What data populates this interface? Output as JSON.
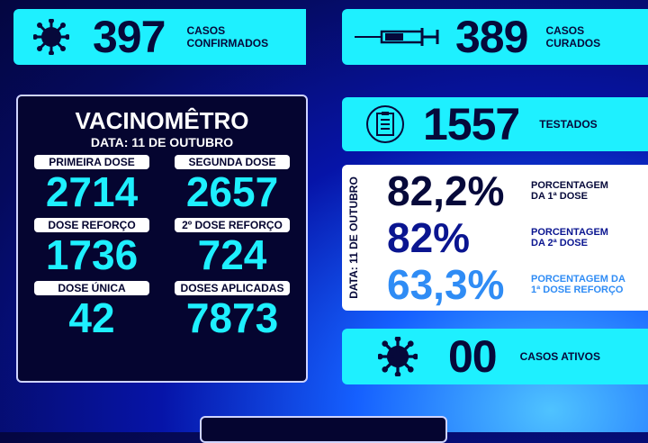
{
  "confirmados": {
    "value": "397",
    "label1": "CASOS",
    "label2": "CONFIRMADOS",
    "icon": "virus-icon"
  },
  "curados": {
    "value": "389",
    "label1": "CASOS",
    "label2": "CURADOS",
    "icon": "syringe-icon"
  },
  "testados": {
    "value": "1557",
    "label": "TESTADOS",
    "icon": "clipboard-icon"
  },
  "ativos": {
    "value": "00",
    "label": "CASOS ATIVOS",
    "icon": "virus-icon"
  },
  "vacinometro": {
    "title": "VACINOMÊTRO",
    "date": "DATA: 11 DE OUTUBRO",
    "items": [
      {
        "label": "PRIMEIRA DOSE",
        "value": "2714"
      },
      {
        "label": "SEGUNDA DOSE",
        "value": "2657"
      },
      {
        "label": "DOSE REFORÇO",
        "value": "1736"
      },
      {
        "label": "2º DOSE REFORÇO",
        "value": "724"
      },
      {
        "label": "DOSE ÚNICA",
        "value": "42"
      },
      {
        "label": "DOSES APLICADAS",
        "value": "7873"
      }
    ]
  },
  "percentuais": {
    "date": "DATA: 11 DE OUTUBRO",
    "items": [
      {
        "value": "82,2%",
        "label1": "PORCENTAGEM",
        "label2": "DA 1ª DOSE",
        "color": "#06093a"
      },
      {
        "value": "82%",
        "label1": "PORCENTAGEM",
        "label2": "DA 2ª DOSE",
        "color": "#0a1590"
      },
      {
        "value": "63,3%",
        "label1": "PORCENTAGEM DA",
        "label2": "1ª DOSE REFORÇO",
        "color": "#2f8cf5"
      }
    ]
  },
  "colors": {
    "cyan": "#1ef0ff",
    "navy": "#050530"
  }
}
